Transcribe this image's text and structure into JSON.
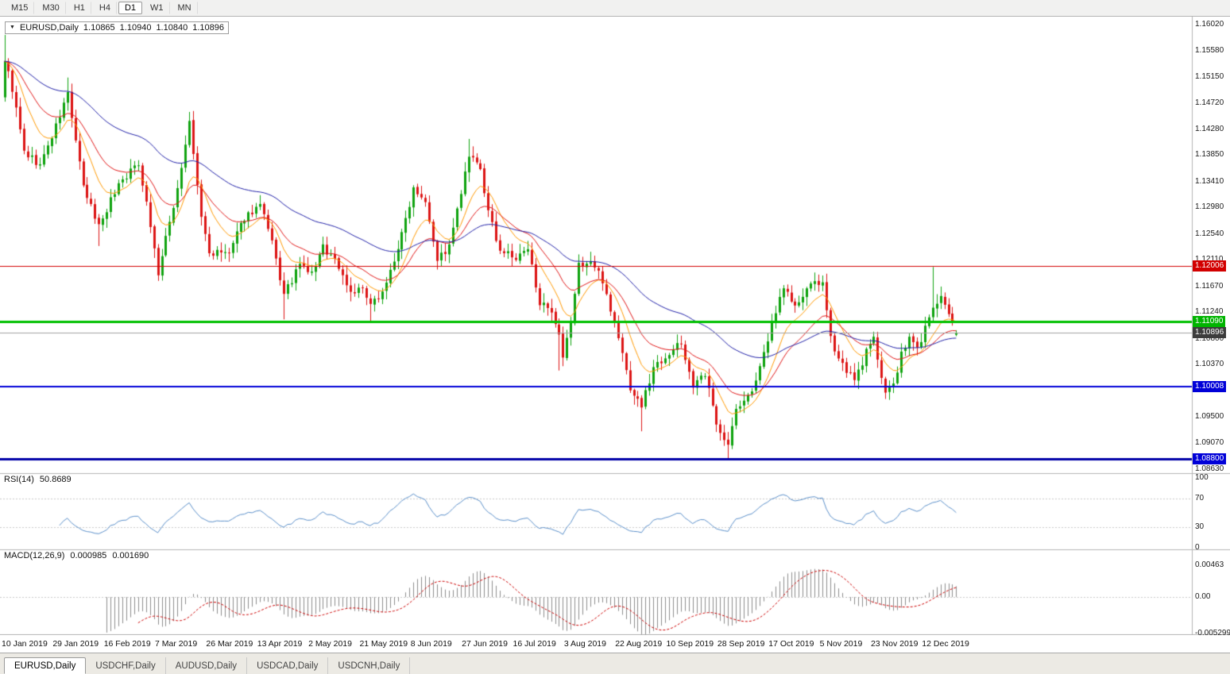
{
  "toolbar": {
    "timeframes": [
      {
        "label": "M15",
        "active": false
      },
      {
        "label": "M30",
        "active": false
      },
      {
        "label": "H1",
        "active": false
      },
      {
        "label": "H4",
        "active": false
      },
      {
        "label": "D1",
        "active": true
      },
      {
        "label": "W1",
        "active": false
      },
      {
        "label": "MN",
        "active": false
      }
    ]
  },
  "chart": {
    "symbol_period": "EURUSD,Daily",
    "open": "1.10865",
    "high": "1.10940",
    "low": "1.10840",
    "close": "1.10896"
  },
  "price_axis": {
    "max": 1.1602,
    "min": 1.0863,
    "ticks": [
      "1.16020",
      "1.15580",
      "1.15150",
      "1.14720",
      "1.14280",
      "1.13850",
      "1.13410",
      "1.12980",
      "1.12540",
      "1.12110",
      "1.11670",
      "1.11240",
      "1.10800",
      "1.10370",
      "1.09930",
      "1.09500",
      "1.09070",
      "1.08630"
    ],
    "badges": [
      {
        "text": "1.12006",
        "price": 1.12006,
        "bg": "#d20000",
        "fg": "#ffffff"
      },
      {
        "text": "1.11090",
        "price": 1.1109,
        "bg": "#00b400",
        "fg": "#ffffff"
      },
      {
        "text": "1.10896",
        "price": 1.10896,
        "bg": "#3c3c3c",
        "fg": "#ffffff"
      },
      {
        "text": "1.10008",
        "price": 1.10008,
        "bg": "#0000d8",
        "fg": "#ffffff"
      },
      {
        "text": "1.08800",
        "price": 1.088,
        "bg": "#0000d8",
        "fg": "#ffffff"
      }
    ]
  },
  "rsi": {
    "label": "RSI(14)",
    "value": "50.8689",
    "period": 14,
    "axis": [
      "100",
      "70",
      "30",
      "0"
    ],
    "levels": [
      70,
      30
    ],
    "color": "#5b8fc9"
  },
  "macd": {
    "label": "MACD(12,26,9)",
    "value_main": "0.000985",
    "value_signal": "0.001690",
    "axis": [
      "0.00463",
      "0.00",
      "-0.005299"
    ],
    "histogram_color": "#8c8c8c",
    "signal_color": "#cc0000"
  },
  "date_axis": {
    "stride": 13,
    "labels": [
      "10 Jan 2019",
      "29 Jan 2019",
      "16 Feb 2019",
      "7 Mar 2019",
      "26 Mar 2019",
      "13 Apr 2019",
      "2 May 2019",
      "21 May 2019",
      "8 Jun 2019",
      "27 Jun 2019",
      "16 Jul 2019",
      "3 Aug 2019",
      "22 Aug 2019",
      "10 Sep 2019",
      "28 Sep 2019",
      "17 Oct 2019",
      "5 Nov 2019",
      "23 Nov 2019",
      "12 Dec 2019"
    ]
  },
  "tabs": [
    {
      "label": "EURUSD,Daily",
      "active": true
    },
    {
      "label": "USDCHF,Daily",
      "active": false
    },
    {
      "label": "AUDUSD,Daily",
      "active": false
    },
    {
      "label": "USDCAD,Daily",
      "active": false
    },
    {
      "label": "USDCNH,Daily",
      "active": false
    }
  ],
  "chart_data": {
    "type": "candlestick",
    "symbol": "EURUSD",
    "timeframe": "Daily",
    "x_range": [
      "10 Jan 2019",
      "20 Dec 2019"
    ],
    "y_axis": {
      "min": 1.0863,
      "max": 1.1602
    },
    "last_ohlc": {
      "open": 1.10865,
      "high": 1.1094,
      "low": 1.1084,
      "close": 1.10896
    },
    "num_candles": 243,
    "noise_seed": 9,
    "candle_colors": {
      "bull": "#0fa30f",
      "bear": "#dc1414"
    },
    "close_path_anchors": [
      [
        0,
        1.1545
      ],
      [
        2,
        1.1495
      ],
      [
        5,
        1.139
      ],
      [
        9,
        1.1368
      ],
      [
        13,
        1.1432
      ],
      [
        16,
        1.1488
      ],
      [
        20,
        1.133
      ],
      [
        24,
        1.1268
      ],
      [
        29,
        1.1338
      ],
      [
        34,
        1.1372
      ],
      [
        36,
        1.1308
      ],
      [
        39,
        1.1188
      ],
      [
        44,
        1.133
      ],
      [
        47,
        1.1438
      ],
      [
        50,
        1.1282
      ],
      [
        52,
        1.1222
      ],
      [
        57,
        1.1222
      ],
      [
        61,
        1.1282
      ],
      [
        65,
        1.1302
      ],
      [
        68,
        1.1238
      ],
      [
        71,
        1.1152
      ],
      [
        75,
        1.1202
      ],
      [
        78,
        1.1188
      ],
      [
        81,
        1.1232
      ],
      [
        84,
        1.1212
      ],
      [
        88,
        1.1158
      ],
      [
        91,
        1.1162
      ],
      [
        93,
        1.1132
      ],
      [
        97,
        1.1172
      ],
      [
        101,
        1.1252
      ],
      [
        104,
        1.1332
      ],
      [
        107,
        1.1312
      ],
      [
        110,
        1.1212
      ],
      [
        113,
        1.1232
      ],
      [
        115,
        1.1292
      ],
      [
        118,
        1.1382
      ],
      [
        121,
        1.1362
      ],
      [
        123,
        1.1288
      ],
      [
        126,
        1.1228
      ],
      [
        130,
        1.1212
      ],
      [
        133,
        1.1228
      ],
      [
        136,
        1.1142
      ],
      [
        139,
        1.1118
      ],
      [
        141,
        1.1082
      ],
      [
        142,
        1.1045
      ],
      [
        144,
        1.1108
      ],
      [
        146,
        1.1202
      ],
      [
        149,
        1.1208
      ],
      [
        152,
        1.1178
      ],
      [
        156,
        1.1082
      ],
      [
        159,
        1.0998
      ],
      [
        162,
        1.0968
      ],
      [
        165,
        1.1032
      ],
      [
        168,
        1.1052
      ],
      [
        172,
        1.1072
      ],
      [
        175,
        1.1002
      ],
      [
        178,
        1.1018
      ],
      [
        181,
        1.0942
      ],
      [
        184,
        1.0902
      ],
      [
        186,
        1.0962
      ],
      [
        189,
        1.0982
      ],
      [
        192,
        1.1028
      ],
      [
        196,
        1.1128
      ],
      [
        198,
        1.1168
      ],
      [
        201,
        1.1132
      ],
      [
        204,
        1.1158
      ],
      [
        206,
        1.1178
      ],
      [
        208,
        1.1168
      ],
      [
        210,
        1.1078
      ],
      [
        213,
        1.1038
      ],
      [
        216,
        1.1008
      ],
      [
        219,
        1.1058
      ],
      [
        221,
        1.1078
      ],
      [
        224,
        1.0992
      ],
      [
        226,
        1.1002
      ],
      [
        228,
        1.1052
      ],
      [
        230,
        1.1082
      ],
      [
        232,
        1.1062
      ],
      [
        234,
        1.1098
      ],
      [
        236,
        1.1132
      ],
      [
        238,
        1.1148
      ],
      [
        240,
        1.1118
      ],
      [
        242,
        1.10896
      ]
    ],
    "wick_overrides": [
      [
        0,
        "high",
        1.1585
      ],
      [
        16,
        "high",
        1.1514
      ],
      [
        24,
        "low",
        1.1234
      ],
      [
        39,
        "low",
        1.1176
      ],
      [
        47,
        "high",
        1.1448
      ],
      [
        71,
        "low",
        1.1112
      ],
      [
        93,
        "low",
        1.1107
      ],
      [
        118,
        "high",
        1.1412
      ],
      [
        141,
        "low",
        1.1027
      ],
      [
        162,
        "low",
        1.0926
      ],
      [
        184,
        "low",
        1.0879
      ],
      [
        206,
        "high",
        1.1179
      ],
      [
        224,
        "low",
        1.0981
      ],
      [
        236,
        "high",
        1.1199
      ]
    ],
    "moving_averages": [
      {
        "name": "fast",
        "period": 10,
        "color": "#ff9900"
      },
      {
        "name": "medium",
        "period": 21,
        "color": "#e01818"
      },
      {
        "name": "slow",
        "period": 55,
        "color": "#2222a8"
      }
    ],
    "horizontal_lines": [
      {
        "price": 1.12006,
        "color": "#d20000",
        "width": 1
      },
      {
        "price": 1.1109,
        "color": "#00c000",
        "width": 3
      },
      {
        "price": 1.10896,
        "color": "#a0a0a0",
        "width": 1
      },
      {
        "price": 1.10008,
        "color": "#0000d8",
        "width": 2
      },
      {
        "price": 1.088,
        "color": "#0000a8",
        "width": 3
      }
    ],
    "macd_axis_max": 0.00463,
    "macd_axis_min": -0.005299,
    "indicators": [
      {
        "type": "RSI",
        "period": 14,
        "current": 50.8689,
        "levels": [
          70,
          30
        ]
      },
      {
        "type": "MACD",
        "fast": 12,
        "slow": 26,
        "signal": 9,
        "current_main": 0.000985,
        "current_signal": 0.00169
      }
    ]
  }
}
